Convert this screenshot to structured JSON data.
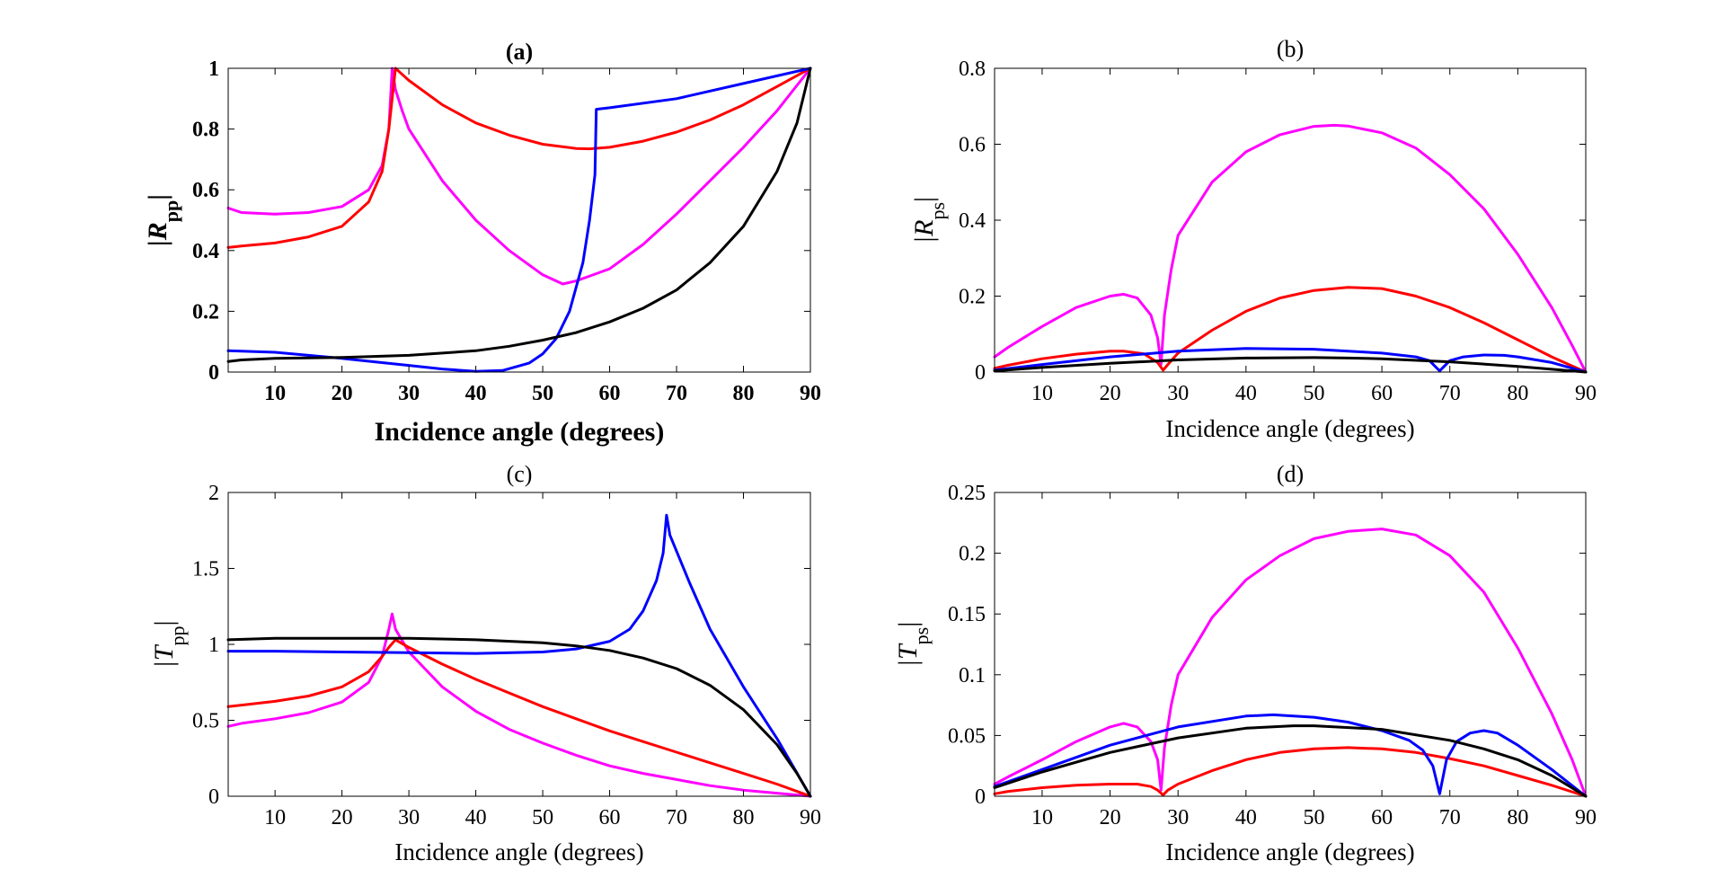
{
  "chart_data": [
    {
      "id": "a",
      "type": "line",
      "title": "(a)",
      "xlabel": "Incidence angle (degrees)",
      "ylabel_main": "|R",
      "ylabel_sub": "pp",
      "ylabel_tail": "|",
      "bold": true,
      "xlim": [
        3,
        90
      ],
      "ylim": [
        0,
        1
      ],
      "xticks": [
        10,
        20,
        30,
        40,
        50,
        60,
        70,
        80,
        90
      ],
      "yticks": [
        0,
        0.2,
        0.4,
        0.6,
        0.8,
        1
      ],
      "ytick_labels": [
        "0",
        "0.2",
        "0.4",
        "0.6",
        "0.8",
        "1"
      ],
      "series": [
        {
          "color": "#ff00ff",
          "x": [
            3,
            5,
            10,
            15,
            20,
            24,
            26,
            27,
            27.5,
            28,
            29,
            30,
            35,
            40,
            45,
            50,
            53,
            55,
            60,
            65,
            70,
            75,
            80,
            85,
            90
          ],
          "y": [
            0.54,
            0.525,
            0.52,
            0.525,
            0.545,
            0.6,
            0.68,
            0.8,
            1.0,
            0.93,
            0.86,
            0.8,
            0.63,
            0.5,
            0.4,
            0.32,
            0.29,
            0.3,
            0.34,
            0.42,
            0.52,
            0.63,
            0.74,
            0.86,
            1.0
          ]
        },
        {
          "color": "#ff0000",
          "x": [
            3,
            5,
            10,
            15,
            20,
            24,
            26,
            27,
            28,
            29,
            30,
            35,
            40,
            45,
            50,
            55,
            57,
            60,
            65,
            70,
            75,
            80,
            85,
            90
          ],
          "y": [
            0.41,
            0.415,
            0.425,
            0.445,
            0.48,
            0.56,
            0.66,
            0.8,
            1.0,
            0.98,
            0.96,
            0.88,
            0.82,
            0.78,
            0.75,
            0.736,
            0.735,
            0.74,
            0.76,
            0.79,
            0.83,
            0.88,
            0.94,
            1.0
          ]
        },
        {
          "color": "#0000ff",
          "x": [
            3,
            10,
            20,
            30,
            35,
            40,
            44,
            48,
            50,
            52,
            54,
            56,
            57,
            57.8,
            58,
            60,
            70,
            80,
            90
          ],
          "y": [
            0.07,
            0.065,
            0.045,
            0.022,
            0.01,
            0.002,
            0.005,
            0.03,
            0.06,
            0.11,
            0.2,
            0.36,
            0.5,
            0.65,
            0.865,
            0.87,
            0.9,
            0.95,
            1.0
          ]
        },
        {
          "color": "#000000",
          "x": [
            3,
            5,
            10,
            20,
            30,
            40,
            45,
            50,
            55,
            60,
            65,
            70,
            75,
            80,
            85,
            88,
            90
          ],
          "y": [
            0.035,
            0.04,
            0.045,
            0.048,
            0.055,
            0.07,
            0.085,
            0.105,
            0.13,
            0.165,
            0.21,
            0.27,
            0.36,
            0.48,
            0.66,
            0.82,
            1.0
          ]
        }
      ]
    },
    {
      "id": "b",
      "type": "line",
      "title": "(b)",
      "xlabel": "Incidence angle (degrees)",
      "ylabel_main": "|R",
      "ylabel_sub": "ps",
      "ylabel_tail": "|",
      "bold": false,
      "xlim": [
        3,
        90
      ],
      "ylim": [
        0,
        0.8
      ],
      "xticks": [
        10,
        20,
        30,
        40,
        50,
        60,
        70,
        80,
        90
      ],
      "yticks": [
        0,
        0.2,
        0.4,
        0.6,
        0.8
      ],
      "ytick_labels": [
        "0",
        "0.2",
        "0.4",
        "0.6",
        "0.8"
      ],
      "series": [
        {
          "color": "#ff00ff",
          "x": [
            3,
            5,
            10,
            15,
            20,
            22,
            24,
            26,
            27,
            27.5,
            28,
            29,
            30,
            35,
            40,
            45,
            50,
            53,
            55,
            60,
            65,
            70,
            75,
            80,
            85,
            88,
            90
          ],
          "y": [
            0.04,
            0.065,
            0.12,
            0.17,
            0.2,
            0.205,
            0.195,
            0.15,
            0.09,
            0.02,
            0.15,
            0.27,
            0.36,
            0.5,
            0.58,
            0.625,
            0.647,
            0.65,
            0.648,
            0.63,
            0.59,
            0.52,
            0.43,
            0.31,
            0.17,
            0.07,
            0.0
          ]
        },
        {
          "color": "#ff0000",
          "x": [
            3,
            5,
            10,
            15,
            20,
            22,
            25,
            27,
            27.8,
            28.5,
            30,
            35,
            40,
            45,
            50,
            55,
            60,
            65,
            70,
            75,
            80,
            85,
            90
          ],
          "y": [
            0.01,
            0.018,
            0.035,
            0.047,
            0.055,
            0.055,
            0.048,
            0.025,
            0.005,
            0.02,
            0.05,
            0.11,
            0.16,
            0.195,
            0.215,
            0.223,
            0.22,
            0.2,
            0.17,
            0.13,
            0.085,
            0.04,
            0.0
          ]
        },
        {
          "color": "#0000ff",
          "x": [
            3,
            10,
            20,
            30,
            40,
            50,
            60,
            65,
            67,
            68.5,
            70,
            72,
            75,
            78,
            80,
            85,
            90
          ],
          "y": [
            0.005,
            0.02,
            0.04,
            0.055,
            0.062,
            0.06,
            0.05,
            0.04,
            0.03,
            0.003,
            0.03,
            0.04,
            0.045,
            0.044,
            0.04,
            0.025,
            0.0
          ]
        },
        {
          "color": "#000000",
          "x": [
            3,
            10,
            20,
            30,
            40,
            50,
            55,
            60,
            70,
            80,
            90
          ],
          "y": [
            0.003,
            0.012,
            0.023,
            0.032,
            0.037,
            0.038,
            0.037,
            0.035,
            0.027,
            0.015,
            0.0
          ]
        }
      ]
    },
    {
      "id": "c",
      "type": "line",
      "title": "(c)",
      "xlabel": "Incidence angle (degrees)",
      "ylabel_main": "|T",
      "ylabel_sub": "pp",
      "ylabel_tail": "|",
      "bold": false,
      "xlim": [
        3,
        90
      ],
      "ylim": [
        0,
        2
      ],
      "xticks": [
        10,
        20,
        30,
        40,
        50,
        60,
        70,
        80,
        90
      ],
      "yticks": [
        0,
        0.5,
        1,
        1.5,
        2
      ],
      "ytick_labels": [
        "0",
        "0.5",
        "1",
        "1.5",
        "2"
      ],
      "series": [
        {
          "color": "#ff00ff",
          "x": [
            3,
            5,
            10,
            15,
            20,
            24,
            26,
            27,
            27.5,
            28,
            30,
            35,
            40,
            45,
            50,
            55,
            60,
            65,
            70,
            75,
            80,
            85,
            90
          ],
          "y": [
            0.46,
            0.48,
            0.51,
            0.55,
            0.62,
            0.75,
            0.92,
            1.1,
            1.2,
            1.1,
            0.95,
            0.72,
            0.56,
            0.44,
            0.35,
            0.27,
            0.2,
            0.15,
            0.11,
            0.07,
            0.04,
            0.02,
            0.0
          ]
        },
        {
          "color": "#ff0000",
          "x": [
            3,
            5,
            10,
            15,
            20,
            24,
            26,
            27,
            28,
            30,
            35,
            40,
            45,
            50,
            55,
            60,
            65,
            70,
            75,
            80,
            85,
            90
          ],
          "y": [
            0.59,
            0.6,
            0.625,
            0.66,
            0.72,
            0.82,
            0.92,
            0.98,
            1.03,
            0.98,
            0.87,
            0.77,
            0.68,
            0.59,
            0.51,
            0.43,
            0.36,
            0.29,
            0.22,
            0.15,
            0.08,
            0.0
          ]
        },
        {
          "color": "#0000ff",
          "x": [
            3,
            10,
            20,
            30,
            40,
            50,
            55,
            60,
            63,
            65,
            67,
            68,
            68.5,
            69,
            72,
            75,
            80,
            85,
            90
          ],
          "y": [
            0.955,
            0.955,
            0.95,
            0.945,
            0.94,
            0.95,
            0.97,
            1.02,
            1.1,
            1.22,
            1.42,
            1.6,
            1.85,
            1.72,
            1.4,
            1.1,
            0.72,
            0.38,
            0.0
          ]
        },
        {
          "color": "#000000",
          "x": [
            3,
            10,
            20,
            30,
            40,
            50,
            55,
            60,
            65,
            70,
            75,
            80,
            85,
            88,
            90
          ],
          "y": [
            1.03,
            1.04,
            1.04,
            1.04,
            1.03,
            1.01,
            0.99,
            0.96,
            0.91,
            0.84,
            0.73,
            0.57,
            0.34,
            0.15,
            0.0
          ]
        }
      ]
    },
    {
      "id": "d",
      "type": "line",
      "title": "(d)",
      "xlabel": "Incidence angle (degrees)",
      "ylabel_main": "|T",
      "ylabel_sub": "ps",
      "ylabel_tail": "|",
      "bold": false,
      "xlim": [
        3,
        90
      ],
      "ylim": [
        0,
        0.25
      ],
      "xticks": [
        10,
        20,
        30,
        40,
        50,
        60,
        70,
        80,
        90
      ],
      "yticks": [
        0,
        0.05,
        0.1,
        0.15,
        0.2,
        0.25
      ],
      "ytick_labels": [
        "0",
        "0.05",
        "0.1",
        "0.15",
        "0.2",
        "0.25"
      ],
      "series": [
        {
          "color": "#ff00ff",
          "x": [
            3,
            5,
            10,
            15,
            20,
            22,
            24,
            26,
            27,
            27.5,
            28,
            29,
            30,
            35,
            40,
            45,
            50,
            55,
            60,
            65,
            70,
            75,
            80,
            85,
            88,
            90
          ],
          "y": [
            0.01,
            0.016,
            0.03,
            0.045,
            0.057,
            0.06,
            0.057,
            0.045,
            0.03,
            0.005,
            0.04,
            0.075,
            0.1,
            0.147,
            0.178,
            0.198,
            0.212,
            0.218,
            0.22,
            0.215,
            0.198,
            0.168,
            0.122,
            0.068,
            0.03,
            0.0
          ]
        },
        {
          "color": "#ff0000",
          "x": [
            3,
            5,
            10,
            15,
            20,
            22,
            24,
            26,
            27,
            27.8,
            28.5,
            30,
            35,
            40,
            45,
            50,
            55,
            60,
            65,
            70,
            75,
            80,
            85,
            90
          ],
          "y": [
            0.002,
            0.004,
            0.007,
            0.009,
            0.01,
            0.01,
            0.01,
            0.008,
            0.005,
            0.001,
            0.005,
            0.01,
            0.021,
            0.03,
            0.036,
            0.039,
            0.04,
            0.039,
            0.036,
            0.031,
            0.025,
            0.017,
            0.009,
            0.0
          ]
        },
        {
          "color": "#0000ff",
          "x": [
            3,
            10,
            20,
            30,
            40,
            44,
            50,
            55,
            60,
            64,
            66,
            67.5,
            68.5,
            69.5,
            71,
            73,
            75,
            77,
            80,
            85,
            90
          ],
          "y": [
            0.008,
            0.022,
            0.042,
            0.057,
            0.066,
            0.067,
            0.065,
            0.061,
            0.054,
            0.046,
            0.038,
            0.025,
            0.002,
            0.03,
            0.045,
            0.052,
            0.054,
            0.052,
            0.042,
            0.022,
            0.0
          ]
        },
        {
          "color": "#000000",
          "x": [
            3,
            10,
            20,
            30,
            40,
            47,
            50,
            60,
            70,
            75,
            80,
            85,
            90
          ],
          "y": [
            0.007,
            0.02,
            0.036,
            0.048,
            0.056,
            0.058,
            0.058,
            0.055,
            0.046,
            0.039,
            0.03,
            0.017,
            0.0
          ]
        }
      ]
    }
  ]
}
